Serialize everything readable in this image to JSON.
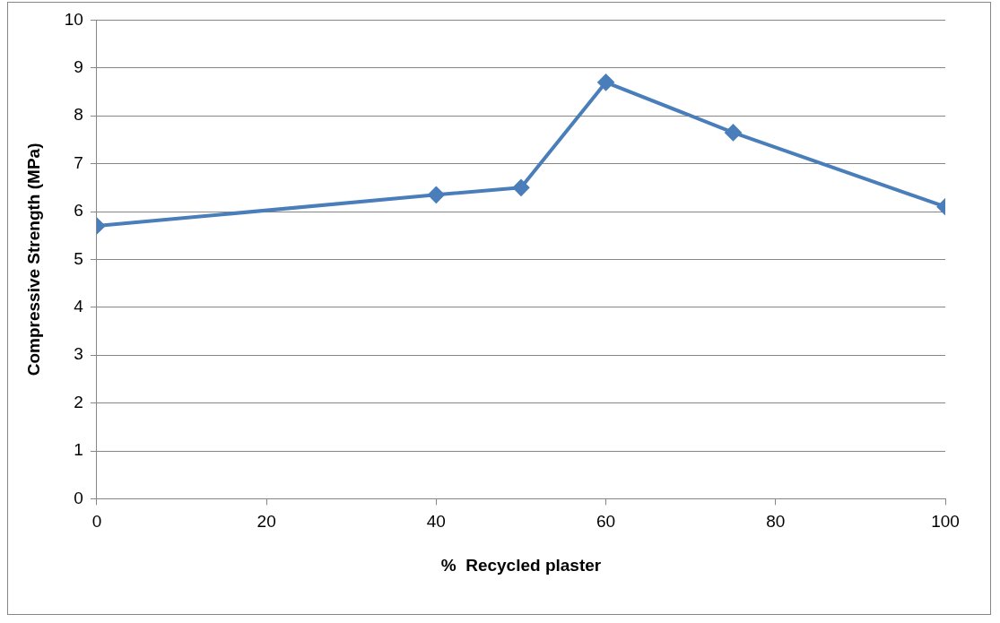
{
  "chart_data": {
    "type": "line",
    "xlabel": "%  Recycled plaster",
    "ylabel": "Compressive Strength (MPa)",
    "x": [
      0,
      40,
      50,
      60,
      75,
      100
    ],
    "series": [
      {
        "color": "#4a7ebb",
        "values": [
          5.7,
          6.35,
          6.5,
          8.7,
          7.65,
          6.1
        ]
      }
    ],
    "xlim": [
      0,
      100
    ],
    "xticks": [
      0,
      20,
      40,
      60,
      80,
      100
    ],
    "ylim": [
      0,
      10
    ],
    "yticks": [
      0,
      1,
      2,
      3,
      4,
      5,
      6,
      7,
      8,
      9,
      10
    ],
    "grid": "y",
    "legend": false,
    "marker": "diamond",
    "line_style": "solid"
  }
}
